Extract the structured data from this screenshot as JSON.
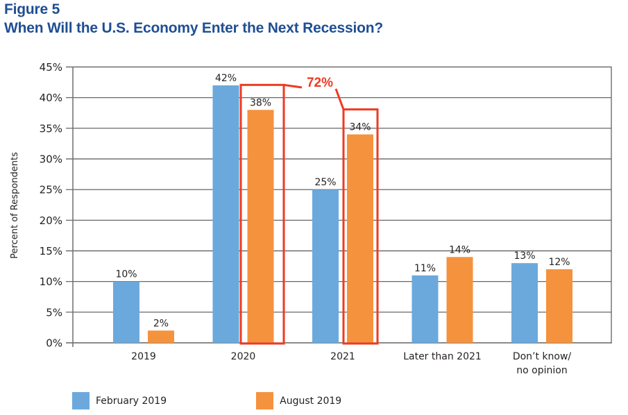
{
  "figure_label": "Figure 5",
  "title": "When Will the U.S. Economy Enter the Next Recession?",
  "colors": {
    "title": "#1F4E93",
    "series_february": "#6BA9DC",
    "series_august": "#F5923E",
    "highlight": "#EE3A22",
    "grid": "#555555",
    "text": "#231F20"
  },
  "legend": [
    {
      "label": "February 2019",
      "color": "#6BA9DC"
    },
    {
      "label": "August 2019",
      "color": "#F5923E"
    }
  ],
  "chart_data": {
    "type": "bar",
    "title": "When Will the U.S. Economy Enter the Next Recession?",
    "xlabel": "",
    "ylabel": "Percent of Respondents",
    "ylim": [
      0,
      45
    ],
    "yticks": [
      0,
      5,
      10,
      15,
      20,
      25,
      30,
      35,
      40,
      45
    ],
    "ytick_labels": [
      "0%",
      "5%",
      "10%",
      "15%",
      "20%",
      "25%",
      "30%",
      "35%",
      "40%",
      "45%"
    ],
    "grid": true,
    "legend_position": "bottom-left",
    "categories": [
      "2019",
      "2020",
      "2021",
      "Later than 2021",
      "Don’t know/\nno opinion"
    ],
    "category_lines": [
      [
        "2019"
      ],
      [
        "2020"
      ],
      [
        "2021"
      ],
      [
        "Later than 2021"
      ],
      [
        "Don’t know/",
        "no opinion"
      ]
    ],
    "series": [
      {
        "name": "February 2019",
        "values": [
          10,
          42,
          25,
          11,
          13
        ],
        "labels": [
          "10%",
          "42%",
          "25%",
          "11%",
          "13%"
        ]
      },
      {
        "name": "August 2019",
        "values": [
          2,
          38,
          34,
          14,
          12
        ],
        "labels": [
          "2%",
          "38%",
          "34%",
          "14%",
          "12%"
        ]
      }
    ],
    "annotations": [
      {
        "type": "highlight-box",
        "series": "August 2019",
        "categories": [
          "2020",
          "2021"
        ],
        "text": "72%",
        "note": "Sum of August 2019 responses for 2020 and 2021"
      }
    ]
  }
}
